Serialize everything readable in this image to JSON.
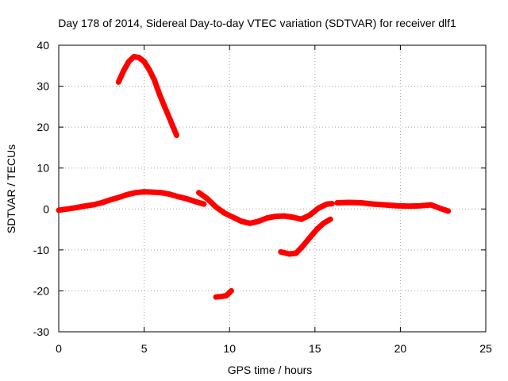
{
  "chart_data": {
    "type": "scatter",
    "title": "Day 178 of 2014, Sidereal Day-to-day VTEC variation (SDTVAR) for receiver dlf1",
    "xlabel": "GPS time / hours",
    "ylabel": "SDTVAR / TECUs",
    "xlim": [
      0,
      25
    ],
    "ylim": [
      -30,
      40
    ],
    "xticks": [
      0,
      5,
      10,
      15,
      20,
      25
    ],
    "yticks": [
      -30,
      -20,
      -10,
      0,
      10,
      20,
      30,
      40
    ],
    "grid": true,
    "legend": "none",
    "color": "#ff0000",
    "series": [
      {
        "name": "arc-main-1",
        "x": [
          0.0,
          0.5,
          1.0,
          1.5,
          2.0,
          2.5,
          3.0,
          3.5,
          4.0,
          4.5,
          5.0,
          5.5,
          6.0,
          6.5,
          7.0,
          7.5,
          8.0,
          8.5
        ],
        "y": [
          -0.3,
          0.0,
          0.3,
          0.7,
          1.0,
          1.5,
          2.2,
          2.8,
          3.5,
          4.0,
          4.2,
          4.1,
          4.0,
          3.6,
          3.0,
          2.5,
          1.8,
          1.2
        ]
      },
      {
        "name": "arc-main-2",
        "x": [
          8.2,
          8.7,
          9.2,
          9.7,
          10.2,
          10.7,
          11.2,
          11.7,
          12.2,
          12.7,
          13.2,
          13.7,
          14.2,
          14.7,
          15.2,
          15.7,
          16.0
        ],
        "y": [
          4.0,
          2.5,
          0.5,
          -1.0,
          -2.0,
          -3.0,
          -3.5,
          -3.0,
          -2.2,
          -1.8,
          -1.7,
          -2.0,
          -2.5,
          -1.5,
          0.2,
          1.2,
          1.3
        ]
      },
      {
        "name": "arc-main-3",
        "x": [
          16.3,
          17.0,
          17.7,
          18.4,
          19.1,
          19.8,
          20.5,
          21.2,
          21.8,
          22.3,
          22.8
        ],
        "y": [
          1.5,
          1.6,
          1.5,
          1.2,
          1.0,
          0.8,
          0.7,
          0.8,
          1.0,
          0.2,
          -0.5
        ]
      },
      {
        "name": "arc-high",
        "x": [
          3.5,
          3.8,
          4.1,
          4.4,
          4.7,
          5.0,
          5.3,
          5.6,
          5.9,
          6.2,
          6.5,
          6.8,
          6.9
        ],
        "y": [
          31.0,
          33.8,
          36.0,
          37.2,
          37.0,
          36.0,
          34.0,
          31.5,
          28.0,
          25.0,
          22.0,
          19.0,
          18.0
        ]
      },
      {
        "name": "arc-low-1",
        "x": [
          9.2,
          9.5,
          9.8,
          10.1
        ],
        "y": [
          -21.5,
          -21.4,
          -21.2,
          -20.0
        ]
      },
      {
        "name": "arc-low-2",
        "x": [
          13.0,
          13.5,
          13.9,
          14.3,
          14.7,
          15.1,
          15.5,
          15.9
        ],
        "y": [
          -10.5,
          -11.0,
          -10.8,
          -9.0,
          -7.0,
          -5.0,
          -3.5,
          -2.5
        ]
      }
    ]
  }
}
